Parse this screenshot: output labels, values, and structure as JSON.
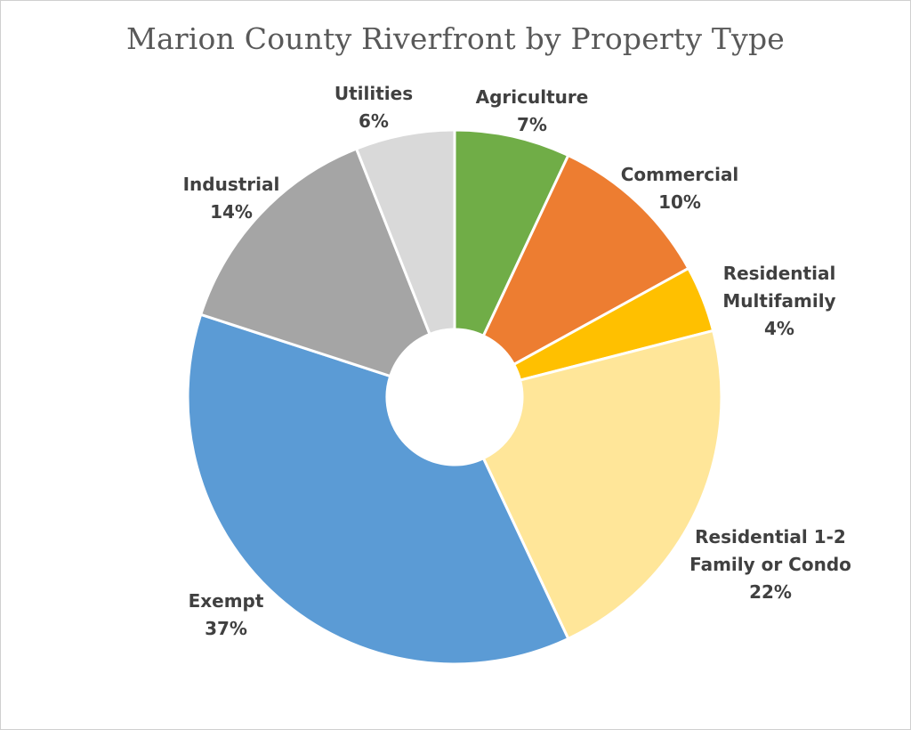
{
  "chart_data": {
    "type": "pie",
    "title": "Marion County Riverfront by Property Type",
    "slices": [
      {
        "label": "Agriculture",
        "percent_label": "7%",
        "value": 7,
        "color": "#70AD47"
      },
      {
        "label": "Commercial",
        "percent_label": "10%",
        "value": 10,
        "color": "#ED7D31"
      },
      {
        "label": "Residential Multifamily",
        "percent_label": "4%",
        "value": 4,
        "color": "#FFC000"
      },
      {
        "label": "Residential 1-2 Family or Condo",
        "percent_label": "22%",
        "value": 22,
        "color": "#FFE699"
      },
      {
        "label": "Exempt",
        "percent_label": "37%",
        "value": 37,
        "color": "#5B9BD5"
      },
      {
        "label": "Industrial",
        "percent_label": "14%",
        "value": 14,
        "color": "#A5A5A5"
      },
      {
        "label": "Utilities",
        "percent_label": "6%",
        "value": 6,
        "color": "#D9D9D9"
      }
    ],
    "donut": true
  }
}
